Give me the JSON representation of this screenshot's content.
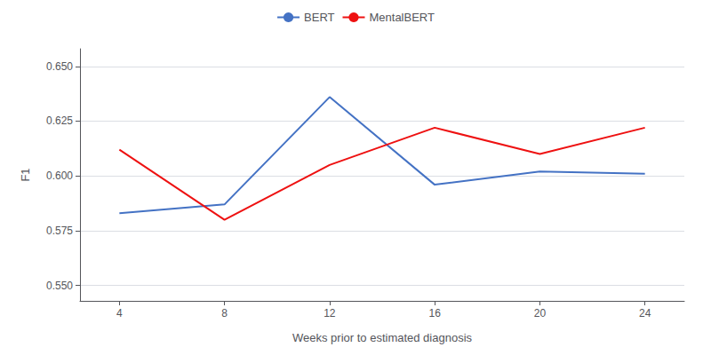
{
  "chart_data": {
    "type": "line",
    "x": [
      4,
      8,
      12,
      16,
      20,
      24
    ],
    "series": [
      {
        "name": "BERT",
        "color": "#4472C4",
        "values": [
          0.583,
          0.587,
          0.636,
          0.596,
          0.602,
          0.601
        ]
      },
      {
        "name": "MentalBERT",
        "color": "#EE1111",
        "values": [
          0.612,
          0.58,
          0.605,
          0.622,
          0.61,
          0.622
        ]
      }
    ],
    "xlabel": "Weeks prior to estimated diagnosis",
    "ylabel": "F1",
    "xlim": [
      2.5,
      25.5
    ],
    "xticks": [
      4,
      8,
      12,
      16,
      20,
      24
    ],
    "ylim": [
      0.543,
      0.658
    ],
    "yticks": [
      {
        "value": 0.55,
        "label": "0.550"
      },
      0.575,
      {
        "value": 0.6,
        "label": "0.600"
      },
      0.625,
      {
        "value": 0.65,
        "label": "0.650"
      }
    ],
    "grid": true,
    "legend": "top"
  }
}
